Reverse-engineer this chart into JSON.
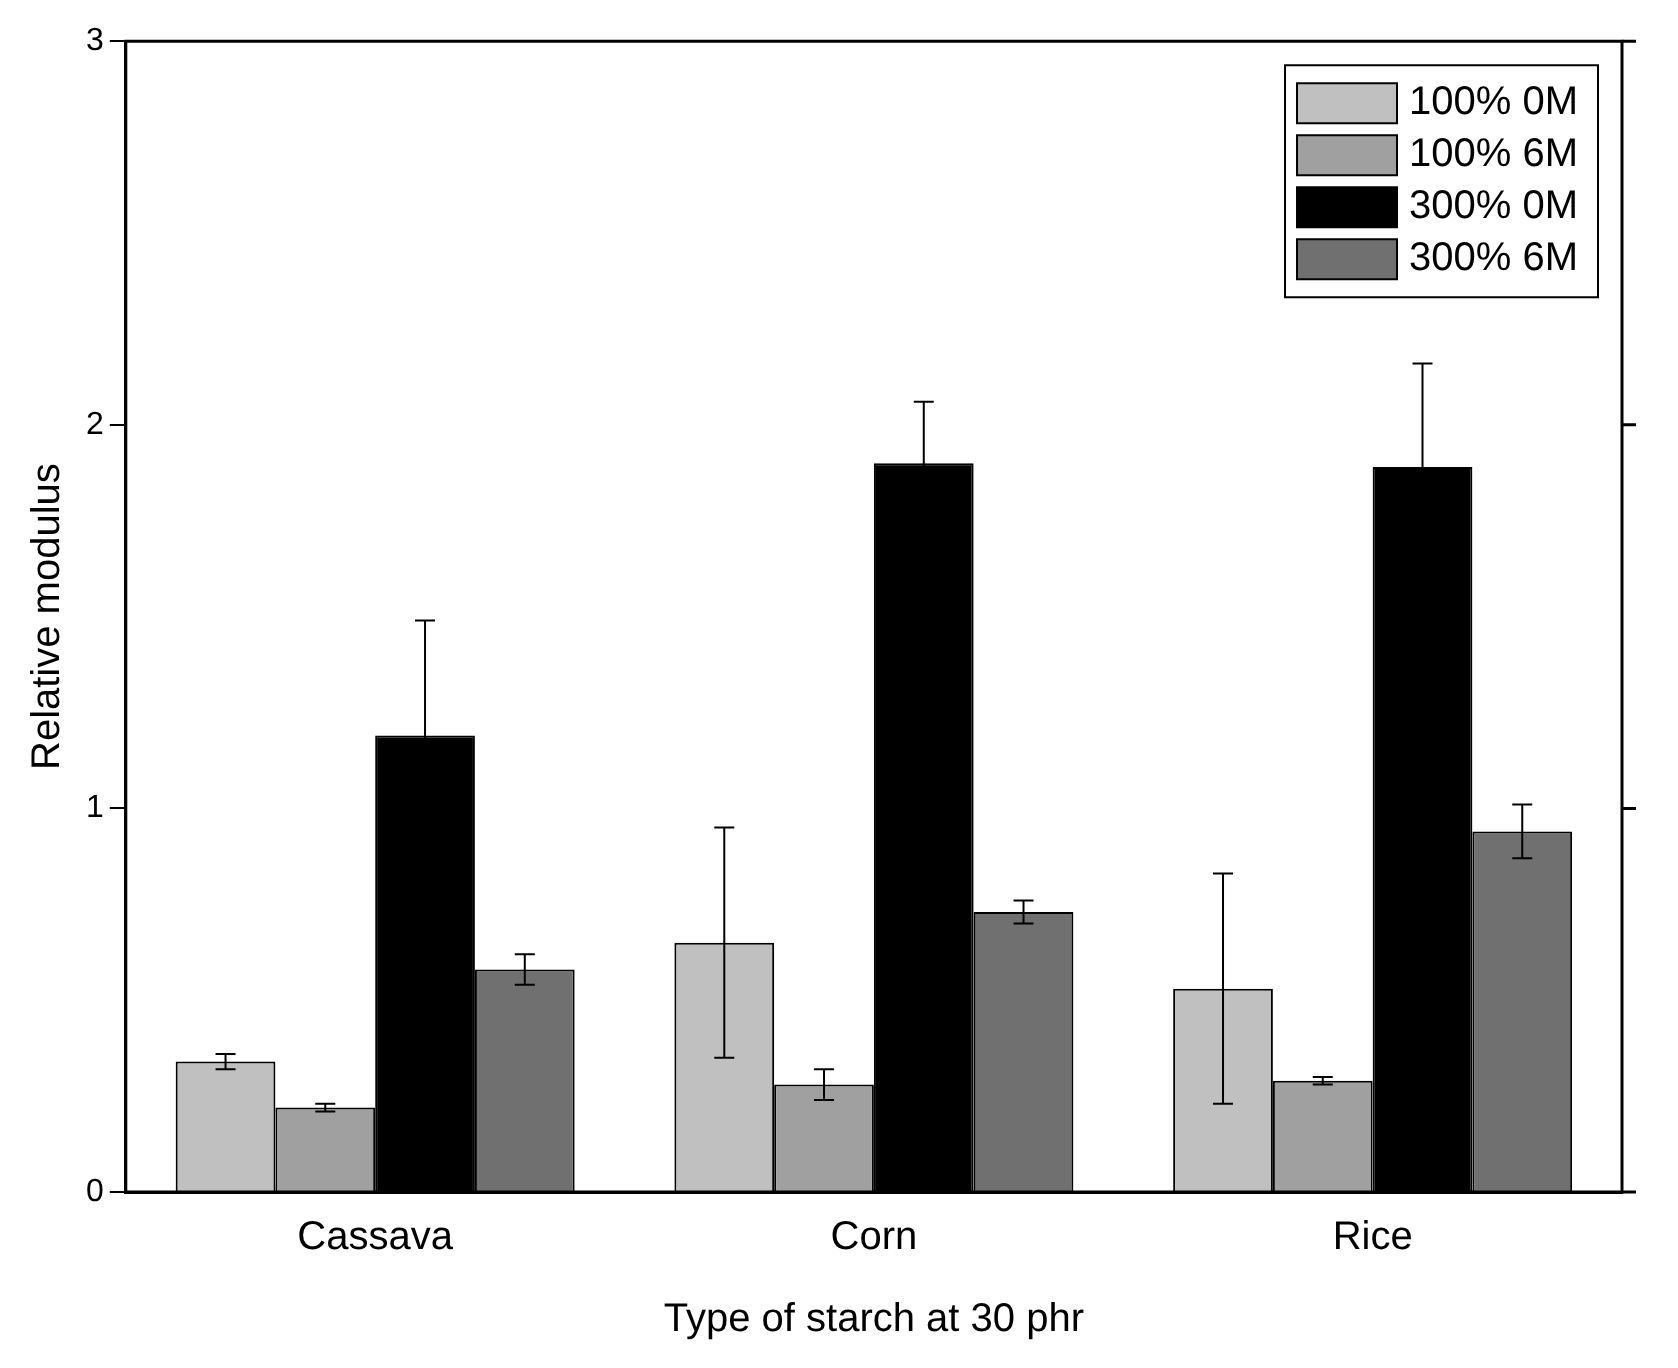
{
  "chart_data": {
    "type": "bar",
    "xlabel": "Type of starch at 30 phr",
    "ylabel": "Relative modulus",
    "categories": [
      "Cassava",
      "Corn",
      "Rice"
    ],
    "series": [
      {
        "name": "100% 0M",
        "color": "#c0c0c0",
        "values": [
          0.34,
          0.65,
          0.53
        ],
        "errors": [
          0.02,
          0.3,
          0.3
        ]
      },
      {
        "name": "100% 6M",
        "color": "#a0a0a0",
        "values": [
          0.22,
          0.28,
          0.29
        ],
        "errors": [
          0.01,
          0.04,
          0.01
        ]
      },
      {
        "name": "300% 0M",
        "color": "#000000",
        "values": [
          1.19,
          1.9,
          1.89
        ],
        "errors": [
          0.3,
          0.16,
          0.27
        ]
      },
      {
        "name": "300% 6M",
        "color": "#707070",
        "values": [
          0.58,
          0.73,
          0.94
        ],
        "errors": [
          0.04,
          0.03,
          0.07
        ]
      }
    ],
    "ylim": [
      0,
      3
    ],
    "yticks": [
      0,
      1,
      2,
      3
    ],
    "grid": false,
    "legend": "top right"
  }
}
